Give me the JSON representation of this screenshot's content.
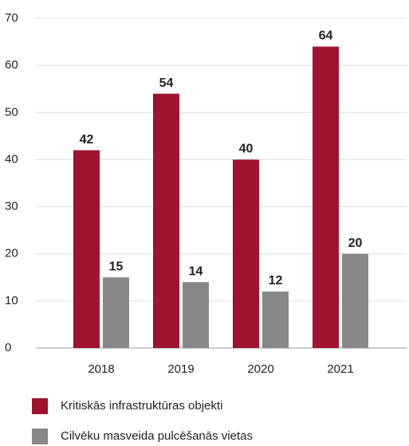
{
  "chart_data": {
    "type": "bar",
    "categories": [
      "2018",
      "2019",
      "2020",
      "2021"
    ],
    "series": [
      {
        "name": "Kritiskās infrastruktūras objekti",
        "color": "#a0132f",
        "values": [
          42,
          54,
          40,
          64
        ]
      },
      {
        "name": "Cilvēku masveida pulcēšanās vietas",
        "color": "#888888",
        "values": [
          15,
          14,
          12,
          20
        ]
      }
    ],
    "ylim": [
      0,
      70
    ],
    "yticks": [
      0,
      10,
      20,
      30,
      40,
      50,
      60,
      70
    ],
    "grid": true,
    "legend": "bottom"
  }
}
